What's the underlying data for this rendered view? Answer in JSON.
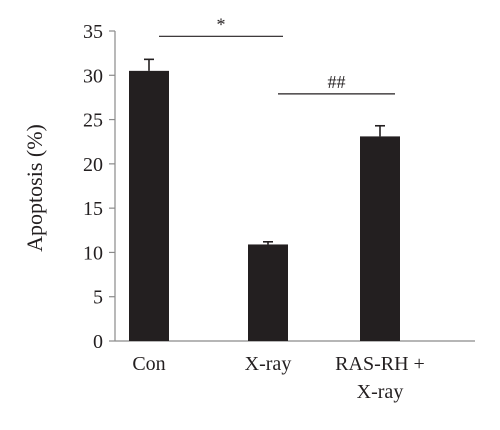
{
  "chart_data": {
    "type": "bar",
    "title": "",
    "xlabel": "",
    "ylabel": "Apoptosis (%)",
    "ylim": [
      0,
      35
    ],
    "yticks": [
      0,
      5,
      10,
      15,
      20,
      25,
      30,
      35
    ],
    "grid": false,
    "categories": [
      {
        "label": [
          "Con"
        ]
      },
      {
        "label": [
          "X-ray"
        ]
      },
      {
        "label": [
          "RAS-RH +",
          "X-ray"
        ]
      }
    ],
    "values": [
      30.5,
      10.9,
      23.1
    ],
    "errors": [
      1.3,
      0.3,
      1.2
    ],
    "bar_color": "#231f20",
    "significance": [
      {
        "from": 0,
        "to": 1,
        "y": 34.4,
        "symbol": "*"
      },
      {
        "from": 1,
        "to": 2,
        "y": 27.9,
        "symbol": "##"
      }
    ]
  }
}
